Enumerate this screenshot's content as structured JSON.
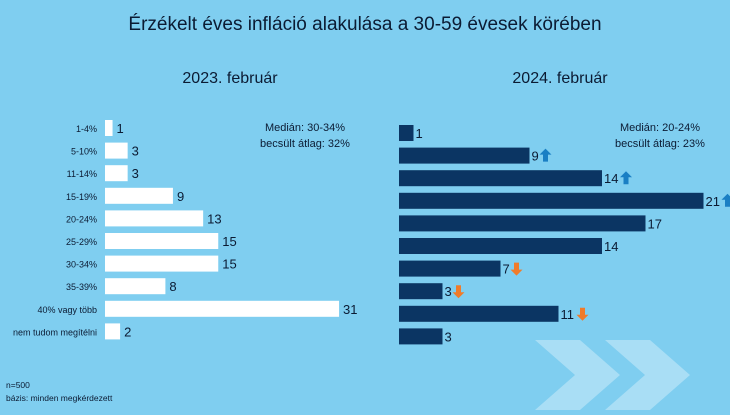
{
  "title": "Érzékelt éves infláció alakulása a 30-59 évesek körében",
  "footnote": {
    "n": "n=500",
    "basis": "bázis: minden megkérdezett"
  },
  "colors": {
    "background": "#7fcef0",
    "bar_2023": "#ffffff",
    "bar_2024": "#0b3563",
    "arrow_up": "#1a7fc4",
    "arrow_down": "#f07b2a"
  },
  "chart_data": [
    {
      "type": "bar",
      "orientation": "horizontal",
      "title": "2023. február",
      "note_line1": "Medián: 30-34%",
      "note_line2": "becsült átlag: 32%",
      "categories": [
        "1-4%",
        "5-10%",
        "11-14%",
        "15-19%",
        "20-24%",
        "25-29%",
        "30-34%",
        "35-39%",
        "40% vagy több",
        "nem tudom megítélni"
      ],
      "values": [
        1,
        3,
        3,
        9,
        13,
        15,
        15,
        8,
        31,
        2
      ],
      "unit": "%"
    },
    {
      "type": "bar",
      "orientation": "horizontal",
      "title": "2024. február",
      "note_line1": "Medián: 20-24%",
      "note_line2": "becsült átlag: 23%",
      "categories": [
        "1-4%",
        "5-10%",
        "11-14%",
        "15-19%",
        "20-24%",
        "25-29%",
        "30-34%",
        "35-39%",
        "40% vagy több",
        "nem tudom megítélni"
      ],
      "values": [
        1,
        9,
        14,
        21,
        17,
        14,
        7,
        3,
        11,
        3
      ],
      "change_arrows": [
        "",
        "up",
        "up",
        "up",
        "",
        "",
        "down",
        "down",
        "down",
        ""
      ],
      "unit": "%"
    }
  ]
}
